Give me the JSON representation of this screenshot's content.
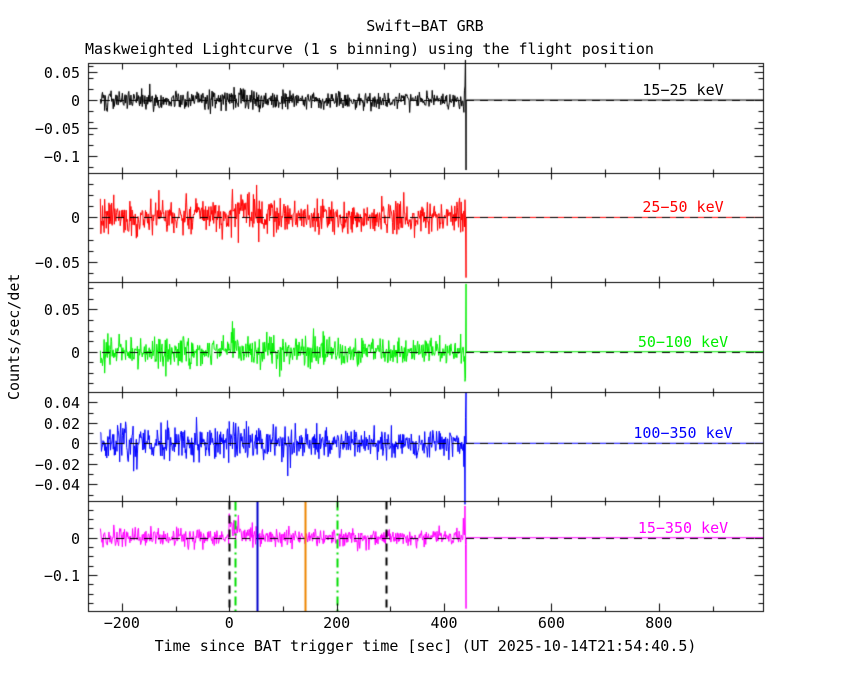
{
  "header": {
    "title": "Swift−BAT GRB",
    "subtitle": "Maskweighted Lightcurve (1 s binning) using the flight position"
  },
  "axes": {
    "xlabel": "Time since BAT trigger time [sec] (UT 2025-10-14T21:54:40.5)",
    "ylabel": "Counts/sec/det"
  },
  "chart_data": {
    "type": "line",
    "title": "Swift−BAT GRB Maskweighted Lightcurve (1 s binning) using the flight position",
    "xlabel": "Time since BAT trigger time [sec] (UT 2025-10-14T21:54:40.5)",
    "ylabel": "Counts/sec/det",
    "background": "#ffffff",
    "grid": false,
    "x_range": [
      -263,
      994
    ],
    "x_major_ticks": [
      -200,
      0,
      200,
      400,
      600,
      800
    ],
    "x_major_labels": [
      "−200",
      "0",
      "200",
      "400",
      "600",
      "800"
    ],
    "x_minor_step_sec": 100,
    "binning_sec": 1,
    "data_start_sec": -240,
    "data_end_sec": 441,
    "baseline_counts": 0,
    "zero_line": {
      "color": "#000000",
      "style": "dashed"
    },
    "panels": [
      {
        "label": "15−25 keV",
        "color": "#000000",
        "ylim": [
          -0.1296,
          0.0661
        ],
        "ytick_values": [
          0.05,
          0,
          -0.05,
          -0.1
        ],
        "ytick_labels": [
          "0.05",
          "0",
          "−0.05",
          "−0.1"
        ],
        "minor_step": 0.02,
        "noise_sigma": 0.0082,
        "burst": {
          "amp": 0.005,
          "tau_sec": 40
        },
        "end_spike": {
          "main": -0.125,
          "secondary": 0.025
        },
        "seed": 101
      },
      {
        "label": "25−50 keV",
        "color": "#ff0000",
        "ylim": [
          -0.0732,
          0.0506
        ],
        "ytick_values": [
          0,
          -0.05
        ],
        "ytick_labels": [
          "0",
          "−0.05"
        ],
        "minor_step": 0.0125,
        "noise_sigma": 0.0095,
        "burst": {
          "amp": 0.014,
          "tau_sec": 32
        },
        "end_spike": {
          "main": -0.068,
          "secondary": 0.02
        },
        "seed": 202
      },
      {
        "label": "50−100 keV",
        "color": "#00ee00",
        "ylim": [
          -0.0473,
          0.082
        ],
        "ytick_values": [
          0.05,
          0
        ],
        "ytick_labels": [
          "0.05",
          "0"
        ],
        "minor_step": 0.0125,
        "noise_sigma": 0.0082,
        "burst": {
          "amp": 0.012,
          "tau_sec": 28
        },
        "end_spike": {
          "main": 0.08,
          "secondary": -0.035
        },
        "seed": 303
      },
      {
        "label": "100−350 keV",
        "color": "#0000ff",
        "ylim": [
          -0.0567,
          0.0502
        ],
        "ytick_values": [
          0.04,
          0.02,
          0,
          -0.02,
          -0.04
        ],
        "ytick_labels": [
          "0.04",
          "0.02",
          "0",
          "−0.02",
          "−0.04"
        ],
        "minor_step": 0.01,
        "noise_sigma": 0.0082,
        "burst": {
          "amp": 0.004,
          "tau_sec": 30
        },
        "end_spike": {
          "main": 0.05,
          "secondary": -0.06
        },
        "seed": 404
      },
      {
        "label": "15−350 keV",
        "color": "#ff00ff",
        "ylim": [
          -0.1965,
          0.0973
        ],
        "ytick_values": [
          0,
          -0.1
        ],
        "ytick_labels": [
          "0",
          "−0.1"
        ],
        "minor_step": 0.025,
        "noise_sigma": 0.0125,
        "burst": {
          "amp": 0.045,
          "tau_sec": 20
        },
        "end_spike": {
          "main": -0.19,
          "secondary": 0.085
        },
        "seed": 505
      }
    ],
    "vertical_lines": [
      {
        "t_sec": 0,
        "color": "#000000",
        "style": "dashed",
        "width": 2
      },
      {
        "t_sec": 10,
        "color": "#00dd00",
        "style": "dashdot",
        "width": 2
      },
      {
        "t_sec": 52,
        "color": "#0000cc",
        "style": "solid",
        "width": 2
      },
      {
        "t_sec": 141,
        "color": "#ee8500",
        "style": "solid",
        "width": 2
      },
      {
        "t_sec": 200,
        "color": "#00dd00",
        "style": "dashdot",
        "width": 2
      },
      {
        "t_sec": 292,
        "color": "#000000",
        "style": "dashed",
        "width": 2
      }
    ]
  }
}
